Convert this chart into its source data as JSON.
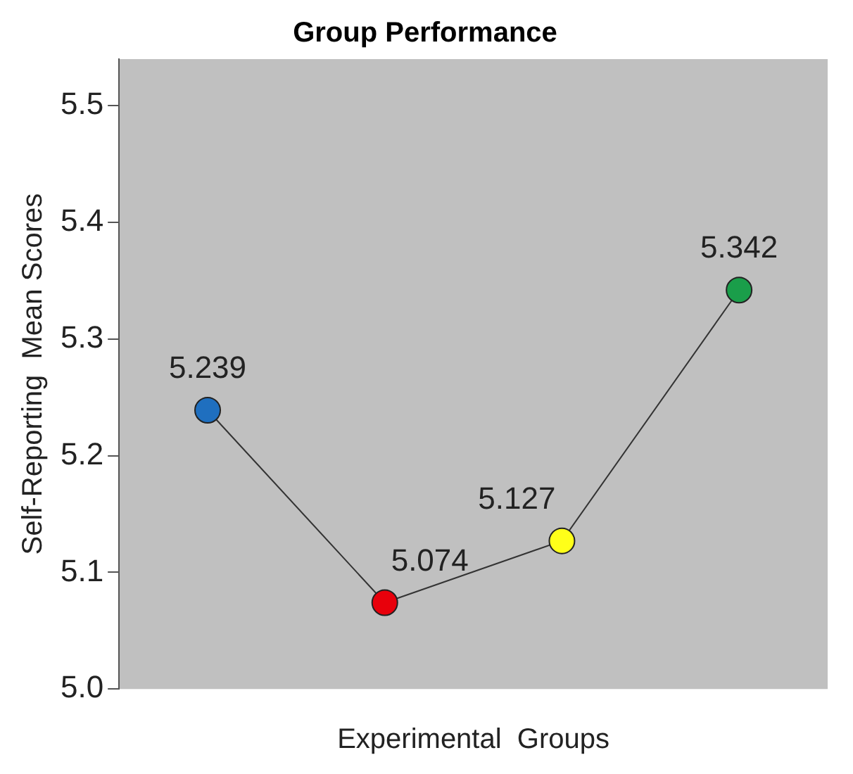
{
  "chart_data": {
    "type": "line",
    "title": "Group Performance",
    "xlabel": "Experimental  Groups",
    "ylabel": "Self-Reporting  Mean Scores",
    "categories": [
      null,
      null,
      null,
      null
    ],
    "series": [
      {
        "color": "#333333",
        "colors": [
          "#1f6fbf",
          "#e8000b",
          "#ffff19",
          "#1a9e4a"
        ],
        "values": [
          5.239,
          5.074,
          5.127,
          5.342
        ]
      }
    ],
    "ylim": [
      5.0,
      5.54
    ],
    "yticks": [
      {
        "value": 5.0,
        "label": "5.0"
      },
      5.1,
      5.2,
      5.3,
      5.4,
      5.5
    ],
    "grid": false,
    "legend": false,
    "marker": "circle",
    "line_style": "solid",
    "data_labels": true
  }
}
